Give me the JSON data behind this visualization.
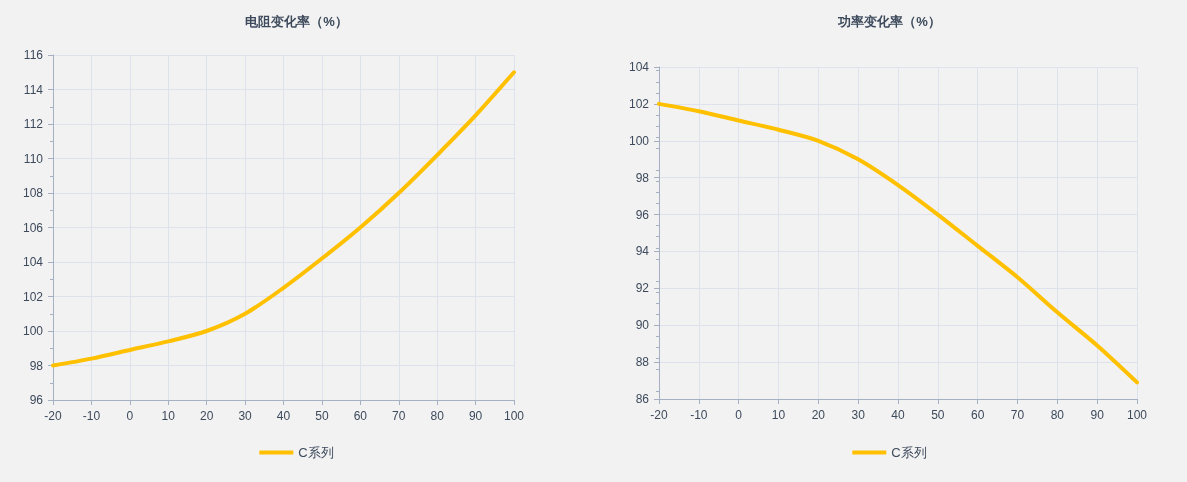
{
  "chart_data": [
    {
      "type": "line",
      "title": "电阻变化率（%）",
      "x": [
        -20,
        -10,
        0,
        10,
        20,
        30,
        40,
        50,
        60,
        70,
        80,
        90,
        100
      ],
      "series": [
        {
          "name": "C系列",
          "color": "#ffc000",
          "values": [
            98,
            98.4,
            98.9,
            99.4,
            100,
            101,
            102.5,
            104.2,
            106,
            108,
            110.2,
            112.5,
            115
          ]
        }
      ],
      "xlim": [
        -20,
        100
      ],
      "xticks": [
        -20,
        -10,
        0,
        10,
        20,
        30,
        40,
        50,
        60,
        70,
        80,
        90,
        100
      ],
      "ylim": [
        96,
        116
      ],
      "yticks": [
        96,
        98,
        100,
        102,
        104,
        106,
        108,
        110,
        112,
        114,
        116
      ],
      "grid": true,
      "legend": "bottom",
      "marker": "none",
      "line_style": "solid"
    },
    {
      "type": "line",
      "title": "功率变化率（%）",
      "x": [
        -20,
        -10,
        0,
        10,
        20,
        30,
        40,
        50,
        60,
        70,
        80,
        90,
        100
      ],
      "series": [
        {
          "name": "C系列",
          "color": "#ffc000",
          "values": [
            102,
            101.6,
            101.1,
            100.6,
            100,
            99,
            97.6,
            96,
            94.3,
            92.6,
            90.7,
            88.9,
            86.9
          ]
        }
      ],
      "xlim": [
        -20,
        100
      ],
      "xticks": [
        -20,
        -10,
        0,
        10,
        20,
        30,
        40,
        50,
        60,
        70,
        80,
        90,
        100
      ],
      "ylim": [
        86,
        104
      ],
      "yticks": [
        86,
        88,
        90,
        92,
        94,
        96,
        98,
        100,
        102,
        104
      ],
      "grid": true,
      "legend": "bottom",
      "marker": "none",
      "line_style": "solid"
    }
  ]
}
